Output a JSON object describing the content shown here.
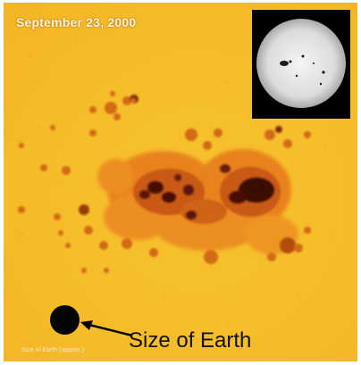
{
  "image": {
    "date_text": "September 23, 2000",
    "earth_label": "Size of Earth",
    "tiny_label": "Size of Earth (approx.)",
    "colors": {
      "photosphere": "#f6be2b",
      "penumbra": "#e07018",
      "umbra": "#3a0a04",
      "inset_background": "#000000",
      "earth_disk": "#050505"
    }
  }
}
